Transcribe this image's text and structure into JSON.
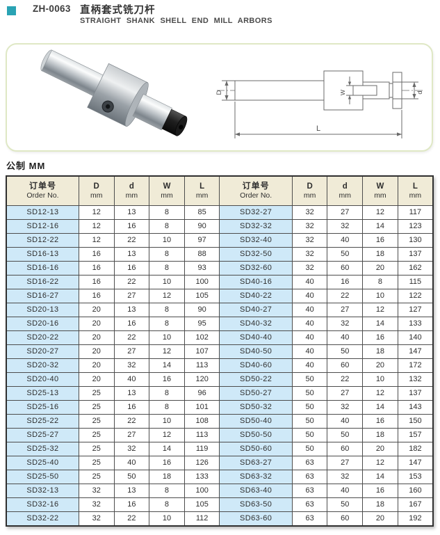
{
  "header": {
    "code": "ZH-0063",
    "title_zh": "直柄套式铣刀杆",
    "title_en": "STRAIGHT SHANK SHELL END MILL ARBORS"
  },
  "unit_label": "公制 MM",
  "diagram": {
    "dim_D": "D",
    "dim_W": "W",
    "dim_d": "d",
    "dim_L": "L"
  },
  "colors": {
    "accent_teal": "#2aa3b4",
    "panel_border": "#dfe8c5",
    "table_header_bg": "#f0ebd7",
    "order_column_bg": "#cfe9f8"
  },
  "table": {
    "order_header_zh": "订单号",
    "order_header_en": "Order No.",
    "dim_headers": [
      "D",
      "d",
      "W",
      "L"
    ],
    "unit": "mm",
    "left_rows": [
      [
        "SD12-13",
        12,
        13,
        8,
        85
      ],
      [
        "SD12-16",
        12,
        16,
        8,
        90
      ],
      [
        "SD12-22",
        12,
        22,
        10,
        97
      ],
      [
        "SD16-13",
        16,
        13,
        8,
        88
      ],
      [
        "SD16-16",
        16,
        16,
        8,
        93
      ],
      [
        "SD16-22",
        16,
        22,
        10,
        100
      ],
      [
        "SD16-27",
        16,
        27,
        12,
        105
      ],
      [
        "SD20-13",
        20,
        13,
        8,
        90
      ],
      [
        "SD20-16",
        20,
        16,
        8,
        95
      ],
      [
        "SD20-22",
        20,
        22,
        10,
        102
      ],
      [
        "SD20-27",
        20,
        27,
        12,
        107
      ],
      [
        "SD20-32",
        20,
        32,
        14,
        113
      ],
      [
        "SD20-40",
        20,
        40,
        16,
        120
      ],
      [
        "SD25-13",
        25,
        13,
        8,
        96
      ],
      [
        "SD25-16",
        25,
        16,
        8,
        101
      ],
      [
        "SD25-22",
        25,
        22,
        10,
        108
      ],
      [
        "SD25-27",
        25,
        27,
        12,
        113
      ],
      [
        "SD25-32",
        25,
        32,
        14,
        119
      ],
      [
        "SD25-40",
        25,
        40,
        16,
        126
      ],
      [
        "SD25-50",
        25,
        50,
        18,
        133
      ],
      [
        "SD32-13",
        32,
        13,
        8,
        100
      ],
      [
        "SD32-16",
        32,
        16,
        8,
        105
      ],
      [
        "SD32-22",
        32,
        22,
        10,
        112
      ]
    ],
    "right_rows": [
      [
        "SD32-27",
        32,
        27,
        12,
        117
      ],
      [
        "SD32-32",
        32,
        32,
        14,
        123
      ],
      [
        "SD32-40",
        32,
        40,
        16,
        130
      ],
      [
        "SD32-50",
        32,
        50,
        18,
        137
      ],
      [
        "SD32-60",
        32,
        60,
        20,
        162
      ],
      [
        "SD40-16",
        40,
        16,
        8,
        115
      ],
      [
        "SD40-22",
        40,
        22,
        10,
        122
      ],
      [
        "SD40-27",
        40,
        27,
        12,
        127
      ],
      [
        "SD40-32",
        40,
        32,
        14,
        133
      ],
      [
        "SD40-40",
        40,
        40,
        16,
        140
      ],
      [
        "SD40-50",
        40,
        50,
        18,
        147
      ],
      [
        "SD40-60",
        40,
        60,
        20,
        172
      ],
      [
        "SD50-22",
        50,
        22,
        10,
        132
      ],
      [
        "SD50-27",
        50,
        27,
        12,
        137
      ],
      [
        "SD50-32",
        50,
        32,
        14,
        143
      ],
      [
        "SD50-40",
        50,
        40,
        16,
        150
      ],
      [
        "SD50-50",
        50,
        50,
        18,
        157
      ],
      [
        "SD50-60",
        50,
        60,
        20,
        182
      ],
      [
        "SD63-27",
        63,
        27,
        12,
        147
      ],
      [
        "SD63-32",
        63,
        32,
        14,
        153
      ],
      [
        "SD63-40",
        63,
        40,
        16,
        160
      ],
      [
        "SD63-50",
        63,
        50,
        18,
        167
      ],
      [
        "SD63-60",
        63,
        60,
        20,
        192
      ]
    ]
  }
}
